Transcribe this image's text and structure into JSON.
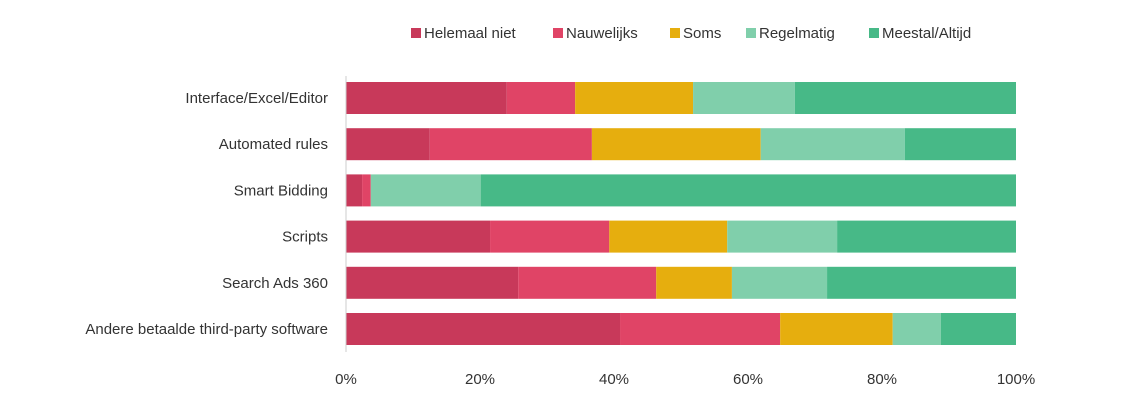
{
  "chart_data": {
    "type": "bar",
    "orientation": "horizontal",
    "stacked": "percent",
    "title": "",
    "xlabel": "",
    "ylabel": "",
    "xlim": [
      0,
      100
    ],
    "legend_position": "top",
    "categories": [
      "Interface/Excel/Editor",
      "Automated rules",
      "Smart Bidding",
      "Scripts",
      "Search Ads 360",
      "Andere betaalde third-party software"
    ],
    "x_ticks": [
      "0%",
      "20%",
      "40%",
      "60%",
      "80%",
      "100%"
    ],
    "series": [
      {
        "name": "Helemaal niet",
        "color": "#C8395A",
        "values": [
          24,
          12.5,
          2.4,
          21.5,
          25.7,
          40.9
        ]
      },
      {
        "name": "Nauwelijks",
        "color": "#E04466",
        "values": [
          10.2,
          24.2,
          1.3,
          17.8,
          20.6,
          23.9
        ]
      },
      {
        "name": "Soms",
        "color": "#E6AE0E",
        "values": [
          17.6,
          25.2,
          0,
          17.6,
          11.3,
          16.8
        ]
      },
      {
        "name": "Regelmatig",
        "color": "#80CFAB",
        "values": [
          15.2,
          21.5,
          16.4,
          16.4,
          14.2,
          7.2
        ]
      },
      {
        "name": "Meestal/Altijd",
        "color": "#47B987",
        "values": [
          33,
          16.6,
          79.9,
          26.7,
          28.2,
          11.2
        ]
      }
    ]
  }
}
